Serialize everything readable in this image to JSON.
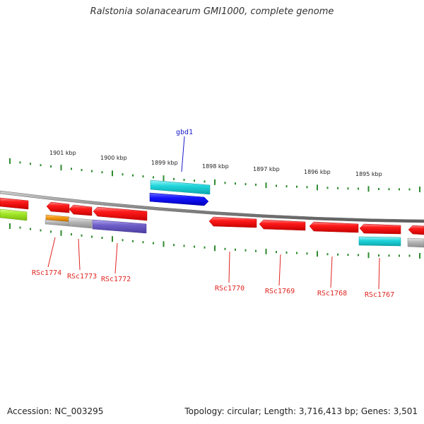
{
  "title": "Ralstonia solanacearum GMI1000, complete genome",
  "footer": {
    "accession": "Accession: NC_003295",
    "topology": "Topology: circular; Length: 3,716,413 bp; Genes: 3,501"
  },
  "ruler_labels": [
    "1901 kbp",
    "1900 kbp",
    "1899 kbp",
    "1898 kbp",
    "1897 kbp",
    "1896 kbp",
    "1895 kbp"
  ],
  "gene_labels": [
    "RSc1774",
    "RSc1773",
    "RSc1772",
    "RSc1770",
    "RSc1769",
    "RSc1768",
    "RSc1767"
  ],
  "special_label": "gbd1",
  "colors": {
    "gene_red": "#ff1a1a",
    "cyan": "#22d6dc",
    "blue": "#1414ff",
    "purple": "#6f5fc8",
    "lime": "#a4e82a",
    "orange": "#f59a10",
    "grey": "#b8b8b8",
    "tick_green": "#2e8b2e",
    "label_red": "#e0241f",
    "label_blue": "#1a1ac8"
  }
}
